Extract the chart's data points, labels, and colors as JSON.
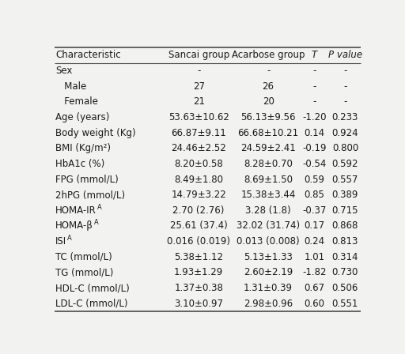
{
  "columns": [
    "Characteristic",
    "Sancai group",
    "Acarbose group",
    "T",
    "P value"
  ],
  "col_italic": [
    false,
    false,
    false,
    true,
    true
  ],
  "rows": [
    {
      "char": "Sex",
      "sancai": "-",
      "acarbose": "-",
      "T": "-",
      "P": "-",
      "indent": false,
      "sup": null
    },
    {
      "char": "Male",
      "sancai": "27",
      "acarbose": "26",
      "T": "-",
      "P": "-",
      "indent": true,
      "sup": null
    },
    {
      "char": "Female",
      "sancai": "21",
      "acarbose": "20",
      "T": "-",
      "P": "-",
      "indent": true,
      "sup": null
    },
    {
      "char": "Age (years)",
      "sancai": "53.63±10.62",
      "acarbose": "56.13±9.56",
      "T": "-1.20",
      "P": "0.233",
      "indent": false,
      "sup": null
    },
    {
      "char": "Body weight (Kg)",
      "sancai": "66.87±9.11",
      "acarbose": "66.68±10.21",
      "T": "0.14",
      "P": "0.924",
      "indent": false,
      "sup": null
    },
    {
      "char": "BMI (Kg/m²)",
      "sancai": "24.46±2.52",
      "acarbose": "24.59±2.41",
      "T": "-0.19",
      "P": "0.800",
      "indent": false,
      "sup": null
    },
    {
      "char": "HbA1c (%)",
      "sancai": "8.20±0.58",
      "acarbose": "8.28±0.70",
      "T": "-0.54",
      "P": "0.592",
      "indent": false,
      "sup": null
    },
    {
      "char": "FPG (mmol/L)",
      "sancai": "8.49±1.80",
      "acarbose": "8.69±1.50",
      "T": "0.59",
      "P": "0.557",
      "indent": false,
      "sup": null
    },
    {
      "char": "2hPG (mmol/L)",
      "sancai": "14.79±3.22",
      "acarbose": "15.38±3.44",
      "T": "0.85",
      "P": "0.389",
      "indent": false,
      "sup": null
    },
    {
      "char": "HOMA-IR",
      "sancai": "2.70 (2.76)",
      "acarbose": "3.28 (1.8)",
      "T": "-0.37",
      "P": "0.715",
      "indent": false,
      "sup": "A"
    },
    {
      "char": "HOMA-β",
      "sancai": "25.61 (37.4)",
      "acarbose": "32.02 (31.74)",
      "T": "0.17",
      "P": "0.868",
      "indent": false,
      "sup": "A"
    },
    {
      "char": "ISI",
      "sancai": "0.016 (0.019)",
      "acarbose": "0.013 (0.008)",
      "T": "0.24",
      "P": "0.813",
      "indent": false,
      "sup": "A"
    },
    {
      "char": "TC (mmol/L)",
      "sancai": "5.38±1.12",
      "acarbose": "5.13±1.33",
      "T": "1.01",
      "P": "0.314",
      "indent": false,
      "sup": null
    },
    {
      "char": "TG (mmol/L)",
      "sancai": "1.93±1.29",
      "acarbose": "2.60±2.19",
      "T": "-1.82",
      "P": "0.730",
      "indent": false,
      "sup": null
    },
    {
      "char": "HDL-C (mmol/L)",
      "sancai": "1.37±0.38",
      "acarbose": "1.31±0.39",
      "T": "0.67",
      "P": "0.506",
      "indent": false,
      "sup": null
    },
    {
      "char": "LDL-C (mmol/L)",
      "sancai": "3.10±0.97",
      "acarbose": "2.98±0.96",
      "T": "0.60",
      "P": "0.551",
      "indent": false,
      "sup": null
    }
  ],
  "bg_color": "#f2f2f0",
  "text_color": "#1a1a1a",
  "line_color_heavy": "#4a4a4a",
  "line_color_light": "#4a4a4a",
  "font_size": 8.5,
  "sup_font_size": 6.0,
  "indent_str": "   "
}
